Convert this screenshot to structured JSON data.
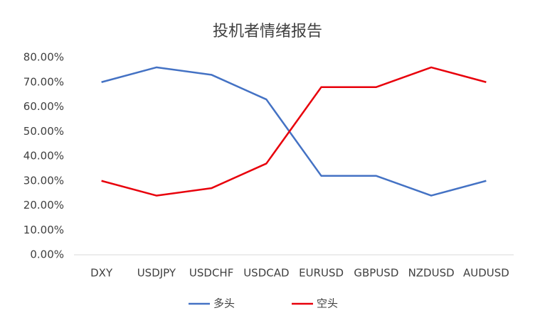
{
  "chart_data": {
    "type": "line",
    "title": "投机者情绪报告",
    "categories": [
      "DXY",
      "USDJPY",
      "USDCHF",
      "USDCAD",
      "EURUSD",
      "GBPUSD",
      "NZDUSD",
      "AUDUSD"
    ],
    "series": [
      {
        "name": "多头",
        "color": "#4472c4",
        "values": [
          70,
          76,
          73,
          63,
          32,
          32,
          24,
          30
        ]
      },
      {
        "name": "空头",
        "color": "#e8000b",
        "values": [
          30,
          24,
          27,
          37,
          68,
          68,
          76,
          70
        ]
      }
    ],
    "ylim": [
      0,
      80
    ],
    "yticks": [
      {
        "value": 0,
        "label": "0.00%"
      },
      {
        "value": 10,
        "label": "10.00%"
      },
      {
        "value": 20,
        "label": "20.00%"
      },
      {
        "value": 30,
        "label": "30.00%"
      },
      {
        "value": 40,
        "label": "40.00%"
      },
      {
        "value": 50,
        "label": "50.00%"
      },
      {
        "value": 60,
        "label": "60.00%"
      },
      {
        "value": 70,
        "label": "70.00%"
      },
      {
        "value": 80,
        "label": "80.00%"
      }
    ],
    "grid": false,
    "legend": "bottom"
  }
}
